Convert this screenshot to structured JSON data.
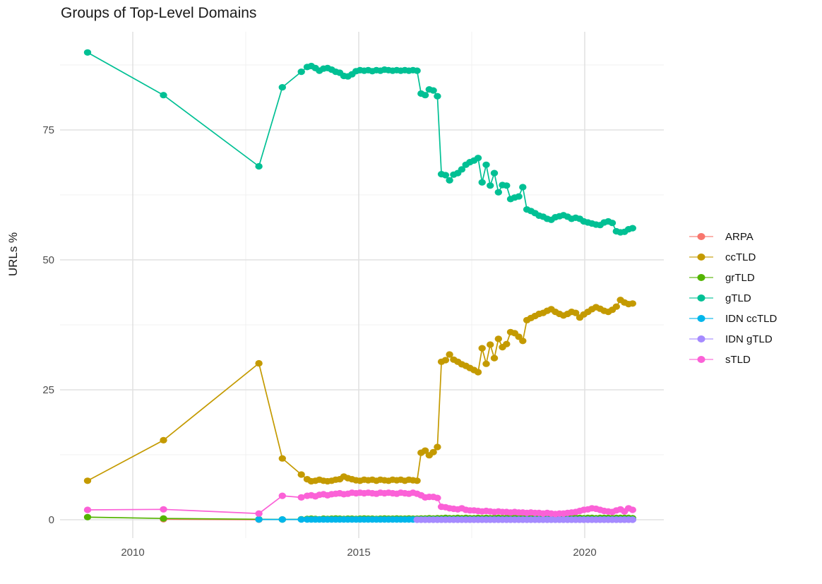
{
  "title": "Groups of Top-Level Domains",
  "chart_data": {
    "type": "line",
    "title": "Groups of Top-Level Domains",
    "xlabel": "",
    "ylabel": "URLs %",
    "x_ticks": [
      2010,
      2015,
      2020
    ],
    "y_ticks": [
      0,
      25,
      50,
      75
    ],
    "x_minor_gridlines": [
      2012.5,
      2017.5
    ],
    "y_minor_gridlines": [
      12.5,
      37.5,
      62.5,
      87.5
    ],
    "xlim": [
      2008.4,
      2021.75
    ],
    "ylim": [
      -3.5,
      94
    ],
    "grid": true,
    "legend_position": "right",
    "style": {
      "background": "#FFFFFF",
      "grid_major": "#E2E2E2",
      "grid_minor": "#F0F0F0",
      "tick_label_color": "#4D4D4D",
      "title_color": "#1A1A1A"
    },
    "x_early": [
      2009.0,
      2010.68,
      2012.79,
      2013.31,
      2013.73
    ],
    "x_dense": [
      2013.86,
      2013.95,
      2014.04,
      2014.13,
      2014.22,
      2014.31,
      2014.4,
      2014.49,
      2014.58,
      2014.67,
      2014.76,
      2014.85,
      2014.94,
      2015.03,
      2015.12,
      2015.21,
      2015.3,
      2015.39,
      2015.48,
      2015.57,
      2015.66,
      2015.75,
      2015.84,
      2015.93,
      2016.02,
      2016.11,
      2016.2,
      2016.29,
      2016.38,
      2016.47,
      2016.56,
      2016.65,
      2016.74,
      2016.83,
      2016.92,
      2017.01,
      2017.1,
      2017.19,
      2017.28,
      2017.37,
      2017.46,
      2017.55,
      2017.64,
      2017.73,
      2017.82,
      2017.91,
      2018.0,
      2018.09,
      2018.18,
      2018.27,
      2018.36,
      2018.45,
      2018.54,
      2018.63,
      2018.72,
      2018.81,
      2018.9,
      2018.99,
      2019.08,
      2019.17,
      2019.26,
      2019.35,
      2019.44,
      2019.53,
      2019.62,
      2019.71,
      2019.8,
      2019.89,
      2019.98,
      2020.07,
      2020.16,
      2020.25,
      2020.34,
      2020.43,
      2020.52,
      2020.61,
      2020.7,
      2020.79,
      2020.88,
      2020.97,
      2021.06
    ],
    "series": [
      {
        "name": "ARPA",
        "color": "#F8766D",
        "x": [
          2010.68,
          2012.79
        ],
        "y": [
          0.1,
          0.02
        ]
      },
      {
        "name": "ccTLD",
        "color": "#C49A00",
        "x": "early_dense",
        "y": [
          7.5,
          15.3,
          30.1,
          11.8,
          8.7,
          7.8,
          7.4,
          7.5,
          7.7,
          7.5,
          7.4,
          7.5,
          7.7,
          7.8,
          8.3,
          8.0,
          7.8,
          7.6,
          7.5,
          7.7,
          7.6,
          7.7,
          7.5,
          7.7,
          7.6,
          7.5,
          7.7,
          7.6,
          7.7,
          7.5,
          7.7,
          7.6,
          7.5,
          12.9,
          13.3,
          12.4,
          13.0,
          14.0,
          30.4,
          30.7,
          31.8,
          30.8,
          30.4,
          29.9,
          29.6,
          29.2,
          28.8,
          28.4,
          33.0,
          30.0,
          33.7,
          31.1,
          34.8,
          33.2,
          33.8,
          36.1,
          35.9,
          35.2,
          34.4,
          38.4,
          38.8,
          39.2,
          39.6,
          39.8,
          40.2,
          40.5,
          40.0,
          39.6,
          39.3,
          39.6,
          40.0,
          39.8,
          38.9,
          39.5,
          40.0,
          40.5,
          40.9,
          40.6,
          40.2,
          40.0,
          40.4,
          41.0,
          42.3,
          41.8,
          41.5,
          41.6
        ]
      },
      {
        "name": "grTLD",
        "color": "#53B400",
        "x": "early_dense",
        "y": [
          0.5,
          0.25,
          0.1,
          0.06,
          0.1,
          0.15,
          0.2,
          0.15,
          0.1,
          0.2,
          0.15,
          0.2,
          0.25,
          0.2,
          0.15,
          0.2,
          0.2,
          0.15,
          0.2,
          0.25,
          0.2,
          0.2,
          0.15,
          0.2,
          0.25,
          0.2,
          0.2,
          0.25,
          0.2,
          0.2,
          0.25,
          0.2,
          0.2,
          0.25,
          0.25,
          0.3,
          0.25,
          0.3,
          0.3,
          0.35,
          0.3,
          0.3,
          0.35,
          0.3,
          0.35,
          0.3,
          0.3,
          0.35,
          0.3,
          0.35,
          0.3,
          0.35,
          0.35,
          0.3,
          0.35,
          0.3,
          0.35,
          0.3,
          0.35,
          0.35,
          0.3,
          0.35,
          0.35,
          0.3,
          0.35,
          0.35,
          0.3,
          0.35,
          0.35,
          0.3,
          0.35,
          0.35,
          0.35,
          0.3,
          0.35,
          0.35,
          0.3,
          0.35,
          0.35,
          0.35,
          0.3,
          0.35,
          0.35,
          0.35,
          0.35,
          0.3
        ]
      },
      {
        "name": "gTLD",
        "color": "#00C094",
        "x": "early_dense",
        "y": [
          89.9,
          81.7,
          68.0,
          83.2,
          86.2,
          87.1,
          87.3,
          86.9,
          86.4,
          86.8,
          86.9,
          86.6,
          86.2,
          86.0,
          85.4,
          85.3,
          85.7,
          86.3,
          86.5,
          86.4,
          86.5,
          86.3,
          86.5,
          86.4,
          86.6,
          86.5,
          86.4,
          86.5,
          86.4,
          86.5,
          86.4,
          86.5,
          86.4,
          82.0,
          81.7,
          82.8,
          82.6,
          81.5,
          66.5,
          66.3,
          65.3,
          66.4,
          66.7,
          67.4,
          68.3,
          68.8,
          69.1,
          69.6,
          64.9,
          68.3,
          64.3,
          66.7,
          63.0,
          64.4,
          64.3,
          61.7,
          62.0,
          62.2,
          64.0,
          59.7,
          59.4,
          59.0,
          58.5,
          58.3,
          57.9,
          57.7,
          58.2,
          58.4,
          58.6,
          58.3,
          57.9,
          58.1,
          57.9,
          57.4,
          57.2,
          57.0,
          56.8,
          56.7,
          57.2,
          57.4,
          57.1,
          55.5,
          55.3,
          55.4,
          55.9,
          56.1
        ]
      },
      {
        "name": "IDN ccTLD",
        "color": "#00B6EB",
        "x": "from_2012_dense",
        "y": {
          "fill": 0.05,
          "count": 84
        }
      },
      {
        "name": "IDN gTLD",
        "color": "#A58AFF",
        "x": "dense_tail_2016",
        "y": {
          "fill": 0.0,
          "count": 54
        }
      },
      {
        "name": "sTLD",
        "color": "#FB61D7",
        "x": "early_dense",
        "y": [
          1.9,
          2.0,
          1.2,
          4.6,
          4.3,
          4.6,
          4.7,
          4.5,
          4.8,
          4.9,
          4.7,
          4.9,
          5.0,
          5.1,
          4.9,
          5.0,
          5.2,
          5.1,
          5.2,
          5.1,
          5.2,
          5.1,
          5.0,
          5.2,
          5.1,
          5.2,
          5.1,
          5.0,
          5.2,
          5.1,
          5.0,
          5.2,
          5.0,
          4.7,
          4.3,
          4.4,
          4.4,
          4.2,
          2.5,
          2.4,
          2.2,
          2.1,
          2.0,
          2.2,
          1.9,
          1.8,
          1.8,
          1.7,
          1.6,
          1.7,
          1.6,
          1.5,
          1.6,
          1.5,
          1.5,
          1.4,
          1.5,
          1.4,
          1.4,
          1.3,
          1.4,
          1.3,
          1.3,
          1.2,
          1.3,
          1.2,
          1.1,
          1.2,
          1.2,
          1.3,
          1.4,
          1.5,
          1.7,
          1.9,
          2.0,
          2.2,
          2.1,
          1.9,
          1.7,
          1.6,
          1.5,
          1.8,
          2.0,
          1.6,
          2.2,
          1.9
        ]
      }
    ]
  }
}
